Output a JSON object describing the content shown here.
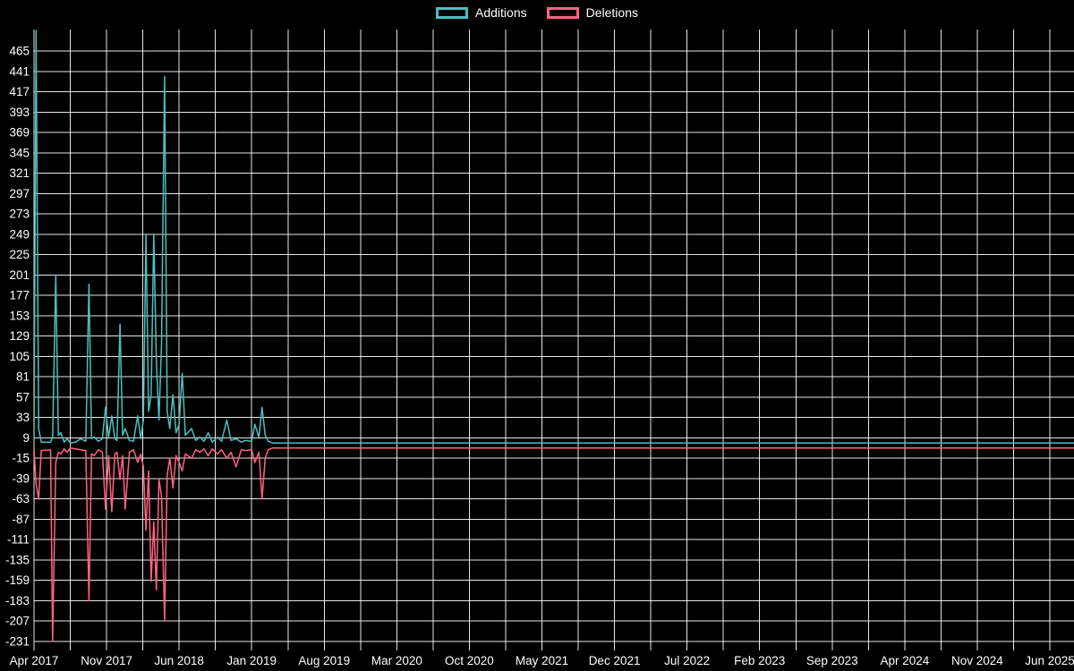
{
  "page": {
    "background": "#000000"
  },
  "legend": {
    "items": [
      {
        "label": "Additions",
        "color": "#4bc0c0"
      },
      {
        "label": "Deletions",
        "color": "#ff6384"
      }
    ]
  },
  "chart_data": {
    "type": "line",
    "title": "",
    "legend_position": "top",
    "grid": {
      "on": true,
      "color": "#ffffff"
    },
    "y_axis": {
      "min": -231,
      "max": 465,
      "tick_step": 24,
      "tick_labels": [
        465,
        441,
        417,
        393,
        369,
        345,
        321,
        297,
        273,
        249,
        225,
        201,
        177,
        153,
        129,
        105,
        81,
        57,
        33,
        9,
        -15,
        -39,
        -63,
        -87,
        -111,
        -135,
        -159,
        -183,
        -207,
        -231
      ]
    },
    "x_axis": {
      "tick_labels": [
        "Apr 2017",
        "Nov 2017",
        "Jun 2018",
        "Jan 2019",
        "Aug 2019",
        "Mar 2020",
        "Oct 2020",
        "May 2021",
        "Dec 2021",
        "Jul 2022",
        "Feb 2023",
        "Sep 2023",
        "Apr 2024",
        "Nov 2024",
        "Jun 2025"
      ],
      "tick_months": [
        0,
        7,
        14,
        21,
        28,
        35,
        42,
        49,
        56,
        63,
        70,
        77,
        84,
        91,
        98
      ],
      "minor_step_months": 3.5
    },
    "series": [
      {
        "name": "Additions",
        "color": "#4bc0c0",
        "points": [
          [
            0,
            6
          ],
          [
            0.2,
            489
          ],
          [
            0.45,
            20
          ],
          [
            0.7,
            4
          ],
          [
            1.6,
            4
          ],
          [
            1.8,
            10
          ],
          [
            2.1,
            201
          ],
          [
            2.35,
            12
          ],
          [
            2.6,
            15
          ],
          [
            2.9,
            4
          ],
          [
            3.2,
            8
          ],
          [
            3.5,
            3
          ],
          [
            4,
            4
          ],
          [
            4.5,
            8
          ],
          [
            5,
            5
          ],
          [
            5.3,
            190
          ],
          [
            5.55,
            8
          ],
          [
            5.8,
            10
          ],
          [
            6.2,
            5
          ],
          [
            6.6,
            8
          ],
          [
            6.9,
            45
          ],
          [
            7.2,
            10
          ],
          [
            7.5,
            35
          ],
          [
            7.8,
            8
          ],
          [
            8,
            6
          ],
          [
            8.3,
            143
          ],
          [
            8.55,
            12
          ],
          [
            8.8,
            20
          ],
          [
            9.2,
            6
          ],
          [
            9.6,
            5
          ],
          [
            10,
            35
          ],
          [
            10.3,
            8
          ],
          [
            10.55,
            30
          ],
          [
            10.8,
            249
          ],
          [
            11.05,
            40
          ],
          [
            11.3,
            60
          ],
          [
            11.55,
            249
          ],
          [
            11.8,
            100
          ],
          [
            12.05,
            30
          ],
          [
            12.3,
            120
          ],
          [
            12.6,
            435
          ],
          [
            12.85,
            40
          ],
          [
            13.1,
            20
          ],
          [
            13.4,
            60
          ],
          [
            13.7,
            15
          ],
          [
            14,
            25
          ],
          [
            14.3,
            85
          ],
          [
            14.6,
            12
          ],
          [
            15.2,
            20
          ],
          [
            15.6,
            6
          ],
          [
            16,
            10
          ],
          [
            16.4,
            5
          ],
          [
            16.8,
            15
          ],
          [
            17.2,
            4
          ],
          [
            17.7,
            10
          ],
          [
            18.1,
            5
          ],
          [
            18.6,
            30
          ],
          [
            19,
            6
          ],
          [
            19.5,
            8
          ],
          [
            20,
            4
          ],
          [
            20.4,
            6
          ],
          [
            21,
            5
          ],
          [
            21.3,
            25
          ],
          [
            21.7,
            10
          ],
          [
            22,
            45
          ],
          [
            22.3,
            12
          ],
          [
            22.6,
            5
          ],
          [
            23,
            3
          ],
          [
            100.4,
            3
          ]
        ]
      },
      {
        "name": "Deletions",
        "color": "#ff6384",
        "points": [
          [
            0,
            -4
          ],
          [
            0.2,
            -45
          ],
          [
            0.45,
            -63
          ],
          [
            0.7,
            -6
          ],
          [
            1.6,
            -5
          ],
          [
            1.8,
            -231
          ],
          [
            2.1,
            -20
          ],
          [
            2.35,
            -8
          ],
          [
            2.6,
            -10
          ],
          [
            2.9,
            -4
          ],
          [
            3.2,
            -8
          ],
          [
            3.5,
            -3
          ],
          [
            4,
            -4
          ],
          [
            4.5,
            -5
          ],
          [
            5,
            -6
          ],
          [
            5.3,
            -183
          ],
          [
            5.55,
            -10
          ],
          [
            5.8,
            -12
          ],
          [
            6.2,
            -5
          ],
          [
            6.6,
            -8
          ],
          [
            6.9,
            -75
          ],
          [
            7.2,
            -12
          ],
          [
            7.5,
            -78
          ],
          [
            7.8,
            -10
          ],
          [
            8,
            -8
          ],
          [
            8.3,
            -40
          ],
          [
            8.55,
            -12
          ],
          [
            8.8,
            -75
          ],
          [
            9.2,
            -8
          ],
          [
            9.6,
            -5
          ],
          [
            10,
            -20
          ],
          [
            10.3,
            -10
          ],
          [
            10.55,
            -25
          ],
          [
            10.8,
            -100
          ],
          [
            11.05,
            -30
          ],
          [
            11.3,
            -160
          ],
          [
            11.55,
            -90
          ],
          [
            11.8,
            -170
          ],
          [
            12.05,
            -40
          ],
          [
            12.3,
            -60
          ],
          [
            12.6,
            -207
          ],
          [
            12.85,
            -35
          ],
          [
            13.1,
            -15
          ],
          [
            13.4,
            -50
          ],
          [
            13.7,
            -12
          ],
          [
            14,
            -20
          ],
          [
            14.3,
            -30
          ],
          [
            14.6,
            -10
          ],
          [
            15.2,
            -15
          ],
          [
            15.6,
            -5
          ],
          [
            16,
            -8
          ],
          [
            16.4,
            -4
          ],
          [
            16.8,
            -12
          ],
          [
            17.2,
            -4
          ],
          [
            17.7,
            -10
          ],
          [
            18.1,
            -5
          ],
          [
            18.6,
            -15
          ],
          [
            19,
            -8
          ],
          [
            19.5,
            -25
          ],
          [
            20,
            -5
          ],
          [
            20.4,
            -6
          ],
          [
            21,
            -5
          ],
          [
            21.3,
            -20
          ],
          [
            21.7,
            -8
          ],
          [
            22,
            -63
          ],
          [
            22.3,
            -15
          ],
          [
            22.6,
            -5
          ],
          [
            23,
            -3
          ],
          [
            100.4,
            -3
          ]
        ]
      }
    ]
  }
}
